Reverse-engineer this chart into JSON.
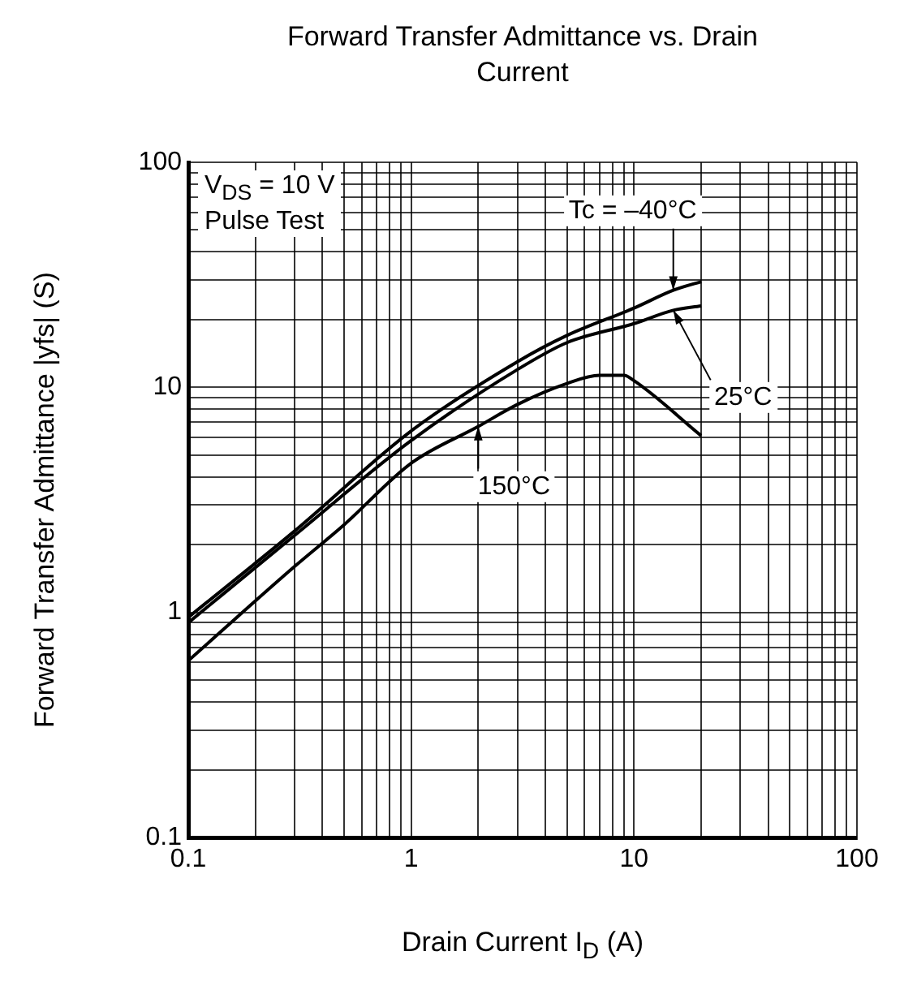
{
  "chart_data": {
    "type": "line",
    "title": "Forward Transfer Admittance vs. Drain Current",
    "xlabel": "Drain Current  I$_{D}$  (A)",
    "ylabel": "Forward Transfer Admittance  |yfs|  (S)",
    "annotations": [
      "V$_{DS}$ = 10 V",
      "Pulse Test"
    ],
    "series": [
      {
        "name": "Tc = –40°C",
        "color": "#000000",
        "x": [
          0.1,
          0.3,
          1,
          3,
          5,
          10,
          15,
          20
        ],
        "values": [
          0.95,
          2.3,
          6.4,
          13,
          17,
          22.5,
          27,
          29.5
        ]
      },
      {
        "name": "25°C",
        "color": "#000000",
        "x": [
          0.1,
          0.3,
          1,
          3,
          5,
          10,
          15,
          20
        ],
        "values": [
          0.9,
          2.2,
          5.8,
          12,
          15.8,
          19.2,
          22,
          23
        ]
      },
      {
        "name": "150°C",
        "color": "#000000",
        "x": [
          0.1,
          0.3,
          0.5,
          1,
          2,
          3,
          5,
          7,
          9,
          10,
          20
        ],
        "values": [
          0.61,
          1.6,
          2.45,
          4.6,
          6.7,
          8.4,
          10.4,
          11.3,
          11.3,
          10.7,
          6.1
        ]
      }
    ],
    "xlim": [
      0.1,
      100
    ],
    "ylim": [
      0.1,
      100
    ],
    "xticks": [
      0.1,
      {
        "value": 0.2,
        "label": null
      },
      {
        "value": 0.3,
        "label": null
      },
      {
        "value": 0.4,
        "label": null
      },
      {
        "value": 0.5,
        "label": null
      },
      {
        "value": 0.6,
        "label": null
      },
      {
        "value": 0.7,
        "label": null
      },
      {
        "value": 0.8,
        "label": null
      },
      {
        "value": 0.9,
        "label": null
      },
      1,
      {
        "value": 2,
        "label": null
      },
      {
        "value": 3,
        "label": null
      },
      {
        "value": 4,
        "label": null
      },
      {
        "value": 5,
        "label": null
      },
      {
        "value": 6,
        "label": null
      },
      {
        "value": 7,
        "label": null
      },
      {
        "value": 8,
        "label": null
      },
      {
        "value": 9,
        "label": null
      },
      10,
      {
        "value": 20,
        "label": null
      },
      {
        "value": 30,
        "label": null
      },
      {
        "value": 40,
        "label": null
      },
      {
        "value": 50,
        "label": null
      },
      {
        "value": 60,
        "label": null
      },
      {
        "value": 70,
        "label": null
      },
      {
        "value": 80,
        "label": null
      },
      {
        "value": 90,
        "label": null
      },
      100
    ],
    "yticks": [
      0.1,
      {
        "value": 0.2,
        "label": null
      },
      {
        "value": 0.3,
        "label": null
      },
      {
        "value": 0.4,
        "label": null
      },
      {
        "value": 0.5,
        "label": null
      },
      {
        "value": 0.6,
        "label": null
      },
      {
        "value": 0.7,
        "label": null
      },
      {
        "value": 0.8,
        "label": null
      },
      {
        "value": 0.9,
        "label": null
      },
      1,
      {
        "value": 2,
        "label": null
      },
      {
        "value": 3,
        "label": null
      },
      {
        "value": 4,
        "label": null
      },
      {
        "value": 5,
        "label": null
      },
      {
        "value": 6,
        "label": null
      },
      {
        "value": 7,
        "label": null
      },
      {
        "value": 8,
        "label": null
      },
      {
        "value": 9,
        "label": null
      },
      10,
      {
        "value": 20,
        "label": null
      },
      {
        "value": 30,
        "label": null
      },
      {
        "value": 40,
        "label": null
      },
      {
        "value": 50,
        "label": null
      },
      {
        "value": 60,
        "label": null
      },
      {
        "value": 70,
        "label": null
      },
      {
        "value": 80,
        "label": null
      },
      {
        "value": 90,
        "label": null
      },
      100
    ],
    "grid": true,
    "log": "xy"
  }
}
